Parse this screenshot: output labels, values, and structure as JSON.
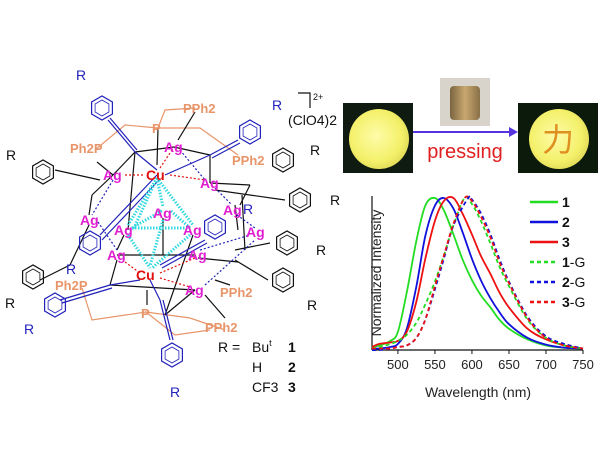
{
  "structure": {
    "metals": {
      "ag": "Ag",
      "cu": "Cu"
    },
    "phosphines": {
      "pph2": "PPh2",
      "ph2p": "Ph2P",
      "p": "P"
    },
    "substituent": "R",
    "charge": "2+",
    "counterion": "(ClO4)2",
    "legend": {
      "prefix": "R =",
      "rows": [
        {
          "group": "Bu",
          "sup": "t",
          "compound": "1"
        },
        {
          "group": "H",
          "sup": "",
          "compound": "2"
        },
        {
          "group": "CF3",
          "sup": "",
          "compound": "3"
        }
      ]
    },
    "colors": {
      "ag": "#e020d0",
      "cu": "#e01010",
      "phosphine": "#e8956a",
      "alkynyl_blue": "#2222bb",
      "cuprophilic": "#30d8e0"
    }
  },
  "photos": {
    "pressing_label": "pressing",
    "stamp_character": "力",
    "arrow_color": "#5533dd"
  },
  "chart_data": {
    "type": "line",
    "title": "",
    "xlabel": "Wavelength (nm)",
    "ylabel": "Normalized Intensity",
    "xlim": [
      465,
      750
    ],
    "ylim": [
      0,
      1
    ],
    "xticks": [
      "500",
      "550",
      "600",
      "650",
      "700",
      "750"
    ],
    "yticks": [],
    "grid": false,
    "legend_position": "top-right",
    "series": [
      {
        "name": "1",
        "suffix": "",
        "color": "#22dd22",
        "dash": false,
        "x": [
          465,
          475,
          490,
          500,
          512,
          525,
          537,
          550,
          562,
          575,
          587,
          600,
          612,
          625,
          637,
          650,
          675,
          700,
          725,
          750
        ],
        "y": [
          0.02,
          0.03,
          0.06,
          0.12,
          0.38,
          0.72,
          0.95,
          1.0,
          0.92,
          0.76,
          0.6,
          0.46,
          0.36,
          0.28,
          0.2,
          0.14,
          0.07,
          0.03,
          0.015,
          0.01
        ]
      },
      {
        "name": "2",
        "suffix": "",
        "color": "#1111dd",
        "dash": false,
        "x": [
          465,
          475,
          490,
          500,
          512,
          525,
          537,
          550,
          562,
          575,
          587,
          600,
          612,
          625,
          637,
          650,
          675,
          700,
          725,
          750
        ],
        "y": [
          0.01,
          0.01,
          0.02,
          0.04,
          0.14,
          0.42,
          0.75,
          0.95,
          1.0,
          0.93,
          0.78,
          0.6,
          0.46,
          0.34,
          0.25,
          0.17,
          0.08,
          0.035,
          0.015,
          0.01
        ]
      },
      {
        "name": "3",
        "suffix": "",
        "color": "#ee1111",
        "dash": false,
        "x": [
          465,
          475,
          490,
          500,
          512,
          525,
          537,
          550,
          562,
          575,
          587,
          600,
          612,
          625,
          637,
          650,
          675,
          700,
          725,
          750
        ],
        "y": [
          0.02,
          0.04,
          0.05,
          0.06,
          0.12,
          0.32,
          0.6,
          0.85,
          0.98,
          1.0,
          0.9,
          0.76,
          0.62,
          0.5,
          0.38,
          0.28,
          0.14,
          0.07,
          0.03,
          0.01
        ]
      },
      {
        "name": "1",
        "suffix": "-G",
        "color": "#22dd22",
        "dash": true,
        "x": [
          465,
          475,
          490,
          500,
          512,
          525,
          537,
          550,
          562,
          575,
          590,
          600,
          612,
          625,
          637,
          650,
          675,
          700,
          725,
          750
        ],
        "y": [
          0.01,
          0.02,
          0.04,
          0.06,
          0.1,
          0.18,
          0.3,
          0.45,
          0.62,
          0.82,
          1.0,
          0.96,
          0.85,
          0.7,
          0.55,
          0.42,
          0.2,
          0.08,
          0.03,
          0.01
        ]
      },
      {
        "name": "2",
        "suffix": "-G",
        "color": "#1111dd",
        "dash": true,
        "x": [
          465,
          475,
          490,
          500,
          512,
          525,
          537,
          550,
          562,
          575,
          595,
          600,
          612,
          625,
          637,
          650,
          675,
          700,
          725,
          750
        ],
        "y": [
          0.0,
          0.0,
          0.01,
          0.02,
          0.03,
          0.08,
          0.2,
          0.4,
          0.6,
          0.82,
          1.0,
          0.99,
          0.9,
          0.76,
          0.6,
          0.45,
          0.22,
          0.09,
          0.04,
          0.01
        ]
      },
      {
        "name": "3",
        "suffix": "-G",
        "color": "#ee1111",
        "dash": true,
        "x": [
          465,
          475,
          490,
          500,
          512,
          525,
          537,
          550,
          562,
          575,
          590,
          600,
          612,
          625,
          637,
          650,
          675,
          700,
          725,
          750
        ],
        "y": [
          0.01,
          0.01,
          0.01,
          0.02,
          0.03,
          0.08,
          0.2,
          0.42,
          0.62,
          0.83,
          1.0,
          0.98,
          0.88,
          0.74,
          0.58,
          0.44,
          0.21,
          0.08,
          0.03,
          0.01
        ]
      }
    ]
  }
}
